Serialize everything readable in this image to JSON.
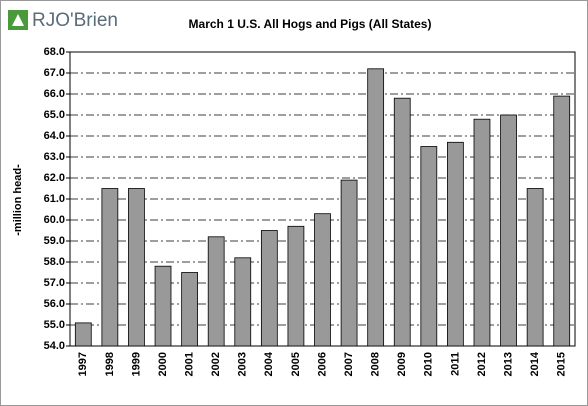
{
  "logo": "RJO'Brien",
  "chart_data": {
    "type": "bar",
    "title": "March 1 U.S. All Hogs and Pigs (All States)",
    "y_label": "-million head-",
    "categories": [
      "1997",
      "1998",
      "1999",
      "2000",
      "2001",
      "2002",
      "2003",
      "2004",
      "2005",
      "2006",
      "2007",
      "2008",
      "2009",
      "2010",
      "2011",
      "2012",
      "2013",
      "2014",
      "2015"
    ],
    "values": [
      55.1,
      61.5,
      61.5,
      57.8,
      57.5,
      59.2,
      58.2,
      59.5,
      59.7,
      60.3,
      61.9,
      67.2,
      65.8,
      63.5,
      63.7,
      64.8,
      65.0,
      61.5,
      65.9
    ],
    "color": "#999999",
    "ylim": [
      54,
      68
    ],
    "yticks": [
      {
        "value": 54,
        "label": "54.0"
      },
      {
        "value": 55,
        "label": "55.0"
      },
      {
        "value": 56,
        "label": "56.0"
      },
      {
        "value": 57,
        "label": "57.0"
      },
      {
        "value": 58,
        "label": "58.0"
      },
      {
        "value": 59,
        "label": "59.0"
      },
      {
        "value": 60,
        "label": "60.0"
      },
      {
        "value": 61,
        "label": "61.0"
      },
      {
        "value": 62,
        "label": "62.0"
      },
      {
        "value": 63,
        "label": "63.0"
      },
      {
        "value": 64,
        "label": "64.0"
      },
      {
        "value": 65,
        "label": "65.0"
      },
      {
        "value": 66,
        "label": "66.0"
      },
      {
        "value": 67,
        "label": "67.0"
      },
      {
        "value": 68,
        "label": "68.0"
      }
    ],
    "grid": true
  }
}
